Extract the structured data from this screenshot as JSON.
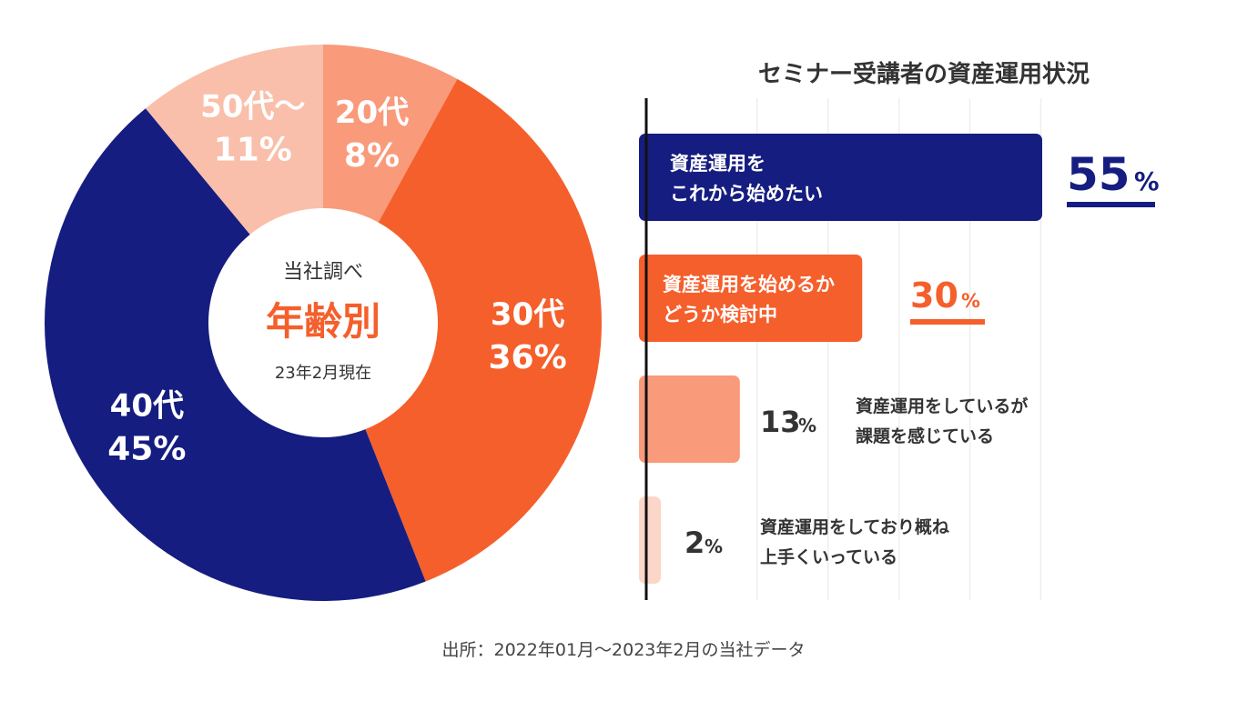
{
  "colors": {
    "navy": "#161d80",
    "orange": "#f55f2b",
    "salmon": "#f99a7b",
    "peach": "#f9bfaa",
    "pale": "#fcd6c8",
    "text": "#333333",
    "grid": "#eeeeee"
  },
  "chart_data": [
    {
      "type": "pie",
      "center": {
        "top": "当社調べ",
        "main": "年齢別",
        "bottom": "23年2月現在"
      },
      "slices": [
        {
          "label": "20代",
          "value": 8,
          "display": "8%",
          "color": "#f99a7b"
        },
        {
          "label": "30代",
          "value": 36,
          "display": "36%",
          "color": "#f55f2b"
        },
        {
          "label": "40代",
          "value": 45,
          "display": "45%",
          "color": "#161d80"
        },
        {
          "label": "50代～",
          "value": 11,
          "display": "11%",
          "color": "#f9bfaa"
        }
      ]
    },
    {
      "type": "bar",
      "orientation": "horizontal",
      "title": "セミナー受講者の資産運用状況",
      "xlim": [
        0,
        100
      ],
      "grid": true,
      "bars": [
        {
          "lines": [
            "資産運用を",
            "これから始めたい"
          ],
          "value": 55,
          "display": "55",
          "color": "#161d80"
        },
        {
          "lines": [
            "資産運用を始めるか",
            "どうか検討中"
          ],
          "value": 30,
          "display": "30",
          "color": "#f55f2b"
        },
        {
          "lines": [
            "資産運用をしているが",
            "課題を感じている"
          ],
          "value": 13,
          "display": "13",
          "color": "#f99a7b"
        },
        {
          "lines": [
            "資産運用をしており概ね",
            "上手くいっている"
          ],
          "value": 2,
          "display": "2",
          "color": "#fcd6c8"
        }
      ],
      "unit": "%"
    }
  ],
  "source": "出所：2022年01月～2023年2月の当社データ"
}
